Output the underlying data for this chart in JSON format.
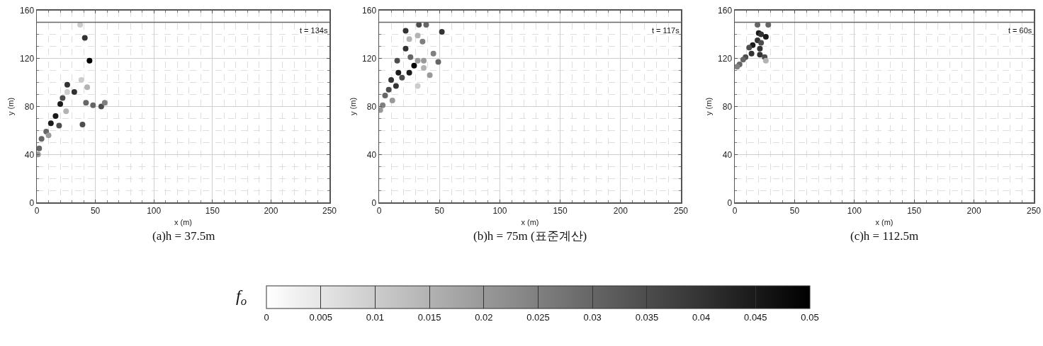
{
  "chart_data": [
    {
      "type": "scatter",
      "title": "(a)h = 37.5m",
      "xlabel": "x (m)",
      "ylabel": "y (m)",
      "annotations": [
        "t = 134s"
      ],
      "marker": "circle",
      "grid": true,
      "x": [
        45,
        41,
        37,
        26,
        32,
        20,
        22,
        16,
        12,
        19,
        8,
        4,
        2,
        1,
        10,
        25,
        39,
        42,
        48,
        55,
        58,
        43,
        38,
        26
      ],
      "values": [
        118,
        137,
        148,
        98,
        92,
        82,
        87,
        72,
        66,
        64,
        59,
        53,
        45,
        40,
        56,
        76,
        65,
        83,
        81,
        80,
        83,
        96,
        102,
        92
      ],
      "colors": [
        "#000000",
        "#333333",
        "#cccccc",
        "#333333",
        "#333333",
        "#1a1a1a",
        "#4d4d4d",
        "#1a1a1a",
        "#1a1a1a",
        "#4d4d4d",
        "#666666",
        "#666666",
        "#666666",
        "#999999",
        "#999999",
        "#b3b3b3",
        "#4d4d4d",
        "#666666",
        "#666666",
        "#4d4d4d",
        "#808080",
        "#b3b3b3",
        "#cccccc",
        "#cccccc"
      ],
      "xlim": [
        0,
        250
      ],
      "ylim": [
        0,
        160
      ],
      "xticks": [
        0,
        {
          "value": 10,
          "label": null
        },
        {
          "value": 20,
          "label": null
        },
        {
          "value": 30,
          "label": null
        },
        {
          "value": 40,
          "label": null
        },
        50,
        {
          "value": 60,
          "label": null
        },
        {
          "value": 70,
          "label": null
        },
        {
          "value": 80,
          "label": null
        },
        {
          "value": 90,
          "label": null
        },
        100,
        {
          "value": 110,
          "label": null
        },
        {
          "value": 120,
          "label": null
        },
        {
          "value": 130,
          "label": null
        },
        {
          "value": 140,
          "label": null
        },
        150,
        {
          "value": 160,
          "label": null
        },
        {
          "value": 170,
          "label": null
        },
        {
          "value": 180,
          "label": null
        },
        {
          "value": 190,
          "label": null
        },
        200,
        {
          "value": 210,
          "label": null
        },
        {
          "value": 220,
          "label": null
        },
        {
          "value": 230,
          "label": null
        },
        {
          "value": 240,
          "label": null
        },
        250
      ],
      "yticks": [
        0,
        {
          "value": 10,
          "label": null
        },
        {
          "value": 20,
          "label": null
        },
        {
          "value": 30,
          "label": null
        },
        40,
        {
          "value": 50,
          "label": null
        },
        {
          "value": 60,
          "label": null
        },
        {
          "value": 70,
          "label": null
        },
        80,
        {
          "value": 90,
          "label": null
        },
        {
          "value": 100,
          "label": null
        },
        {
          "value": 110,
          "label": null
        },
        120,
        {
          "value": 130,
          "label": null
        },
        {
          "value": 140,
          "label": null
        },
        {
          "value": 150,
          "label": null
        },
        160
      ],
      "ref_lines": [
        {
          "axis": "y",
          "value": 150,
          "color": "#666666"
        }
      ]
    },
    {
      "type": "scatter",
      "title": "(b)h = 75m (표준계산)",
      "xlabel": "x (m)",
      "ylabel": "y (m)",
      "annotations": [
        "t = 117s"
      ],
      "marker": "circle",
      "grid": true,
      "clim": [
        0,
        0.05
      ],
      "clabel": "f$_{o}$",
      "cticks": [
        0,
        0.005,
        0.01,
        0.015,
        0.02,
        0.025,
        0.03,
        0.035,
        0.04,
        0.045,
        0.05
      ],
      "x": [
        22,
        33,
        39,
        52,
        32,
        36,
        25,
        22,
        15,
        26,
        29,
        25,
        32,
        37,
        37,
        45,
        49,
        42,
        16,
        19,
        10,
        14,
        8,
        5,
        11,
        3,
        1,
        32
      ],
      "values": [
        143,
        148,
        148,
        142,
        139,
        134,
        136,
        128,
        118,
        121,
        114,
        108,
        118,
        118,
        112,
        124,
        117,
        106,
        108,
        104,
        102,
        97,
        94,
        89,
        85,
        81,
        77,
        97
      ],
      "cvalues": [
        0.04,
        0.035,
        0.03,
        0.04,
        0.015,
        0.025,
        0.015,
        0.04,
        0.035,
        0.03,
        0.05,
        0.045,
        0.02,
        0.02,
        0.015,
        0.025,
        0.03,
        0.02,
        0.045,
        0.035,
        0.04,
        0.04,
        0.035,
        0.03,
        0.02,
        0.025,
        0.02,
        0.01
      ],
      "xlim": [
        0,
        250
      ],
      "ylim": [
        0,
        160
      ],
      "xticks": [
        0,
        {
          "value": 10,
          "label": null
        },
        {
          "value": 20,
          "label": null
        },
        {
          "value": 30,
          "label": null
        },
        {
          "value": 40,
          "label": null
        },
        50,
        {
          "value": 60,
          "label": null
        },
        {
          "value": 70,
          "label": null
        },
        {
          "value": 80,
          "label": null
        },
        {
          "value": 90,
          "label": null
        },
        100,
        {
          "value": 110,
          "label": null
        },
        {
          "value": 120,
          "label": null
        },
        {
          "value": 130,
          "label": null
        },
        {
          "value": 140,
          "label": null
        },
        150,
        {
          "value": 160,
          "label": null
        },
        {
          "value": 170,
          "label": null
        },
        {
          "value": 180,
          "label": null
        },
        {
          "value": 190,
          "label": null
        },
        200,
        {
          "value": 210,
          "label": null
        },
        {
          "value": 220,
          "label": null
        },
        {
          "value": 230,
          "label": null
        },
        {
          "value": 240,
          "label": null
        },
        250
      ],
      "yticks": [
        0,
        {
          "value": 10,
          "label": null
        },
        {
          "value": 20,
          "label": null
        },
        {
          "value": 30,
          "label": null
        },
        40,
        {
          "value": 50,
          "label": null
        },
        {
          "value": 60,
          "label": null
        },
        {
          "value": 70,
          "label": null
        },
        80,
        {
          "value": 90,
          "label": null
        },
        {
          "value": 100,
          "label": null
        },
        {
          "value": 110,
          "label": null
        },
        120,
        {
          "value": 130,
          "label": null
        },
        {
          "value": 140,
          "label": null
        },
        {
          "value": 150,
          "label": null
        },
        160
      ],
      "ref_lines": [
        {
          "axis": "y",
          "value": 150,
          "color": "#666666"
        }
      ]
    },
    {
      "type": "scatter",
      "title": "(c)h = 112.5m",
      "xlabel": "x (m)",
      "ylabel": "y (m)",
      "annotations": [
        "t = 60s"
      ],
      "marker": "circle",
      "grid": true,
      "x": [
        19,
        28,
        20,
        22,
        26,
        19,
        22,
        15,
        12,
        21,
        14,
        21,
        25,
        9,
        7,
        4,
        2,
        26
      ],
      "values": [
        148,
        148,
        141,
        140,
        138,
        135,
        133,
        131,
        129,
        128,
        124,
        123,
        121,
        121,
        119,
        115,
        113,
        118
      ],
      "colors": [
        "#666666",
        "#666666",
        "#1a1a1a",
        "#333333",
        "#1a1a1a",
        "#333333",
        "#4d4d4d",
        "#1a1a1a",
        "#4d4d4d",
        "#333333",
        "#333333",
        "#333333",
        "#4d4d4d",
        "#4d4d4d",
        "#666666",
        "#666666",
        "#808080",
        "#b3b3b3"
      ],
      "xlim": [
        0,
        250
      ],
      "ylim": [
        0,
        160
      ],
      "xticks": [
        0,
        {
          "value": 10,
          "label": null
        },
        {
          "value": 20,
          "label": null
        },
        {
          "value": 30,
          "label": null
        },
        {
          "value": 40,
          "label": null
        },
        50,
        {
          "value": 60,
          "label": null
        },
        {
          "value": 70,
          "label": null
        },
        {
          "value": 80,
          "label": null
        },
        {
          "value": 90,
          "label": null
        },
        100,
        {
          "value": 110,
          "label": null
        },
        {
          "value": 120,
          "label": null
        },
        {
          "value": 130,
          "label": null
        },
        {
          "value": 140,
          "label": null
        },
        150,
        {
          "value": 160,
          "label": null
        },
        {
          "value": 170,
          "label": null
        },
        {
          "value": 180,
          "label": null
        },
        {
          "value": 190,
          "label": null
        },
        200,
        {
          "value": 210,
          "label": null
        },
        {
          "value": 220,
          "label": null
        },
        {
          "value": 230,
          "label": null
        },
        {
          "value": 240,
          "label": null
        },
        250
      ],
      "yticks": [
        0,
        {
          "value": 10,
          "label": null
        },
        {
          "value": 20,
          "label": null
        },
        {
          "value": 30,
          "label": null
        },
        40,
        {
          "value": 50,
          "label": null
        },
        {
          "value": 60,
          "label": null
        },
        {
          "value": 70,
          "label": null
        },
        80,
        {
          "value": 90,
          "label": null
        },
        {
          "value": 100,
          "label": null
        },
        {
          "value": 110,
          "label": null
        },
        120,
        {
          "value": 130,
          "label": null
        },
        {
          "value": 140,
          "label": null
        },
        {
          "value": 150,
          "label": null
        },
        160
      ],
      "ref_lines": [
        {
          "axis": "y",
          "value": 150,
          "color": "#666666"
        }
      ]
    }
  ]
}
